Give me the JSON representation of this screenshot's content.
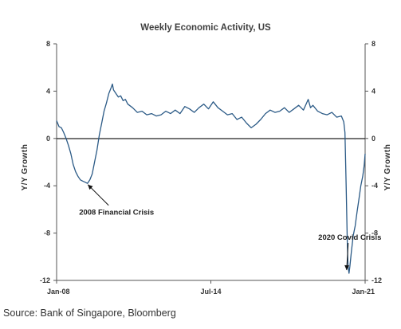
{
  "source_note": "Source: Bank of Singapore, Bloomberg",
  "chart_data": {
    "type": "line",
    "title": "Weekly Economic Activity, US",
    "ylabel_left": "Y/Y Growth",
    "ylabel_right": "Y/Y Growth",
    "x_ticks": [
      "Jan-08",
      "Jul-14",
      "Jan-21"
    ],
    "x_range": [
      2008.0,
      2021.0
    ],
    "ylim": [
      -12,
      8
    ],
    "y_ticks": [
      "8",
      "4",
      "0",
      "-4",
      "-8",
      "-12"
    ],
    "grid": false,
    "zero_line": true,
    "line_color": "#2b5a86",
    "annotations": [
      {
        "text": "2008 Financial Crisis",
        "x": 2009.25,
        "y": -3.7
      },
      {
        "text": "2020 Covid Crisis",
        "x": 2020.22,
        "y": -11.4
      }
    ],
    "series": [
      {
        "values": [
          [
            2008.0,
            1.5
          ],
          [
            2008.1,
            1.0
          ],
          [
            2008.2,
            0.9
          ],
          [
            2008.3,
            0.5
          ],
          [
            2008.4,
            0.0
          ],
          [
            2008.5,
            -0.6
          ],
          [
            2008.6,
            -1.3
          ],
          [
            2008.7,
            -2.2
          ],
          [
            2008.8,
            -2.8
          ],
          [
            2008.9,
            -3.2
          ],
          [
            2009.0,
            -3.5
          ],
          [
            2009.1,
            -3.6
          ],
          [
            2009.2,
            -3.7
          ],
          [
            2009.3,
            -3.8
          ],
          [
            2009.4,
            -3.5
          ],
          [
            2009.5,
            -3.0
          ],
          [
            2009.6,
            -2.0
          ],
          [
            2009.7,
            -1.0
          ],
          [
            2009.8,
            0.3
          ],
          [
            2009.9,
            1.3
          ],
          [
            2010.0,
            2.3
          ],
          [
            2010.1,
            3.0
          ],
          [
            2010.2,
            3.8
          ],
          [
            2010.3,
            4.3
          ],
          [
            2010.35,
            4.6
          ],
          [
            2010.4,
            4.1
          ],
          [
            2010.5,
            3.8
          ],
          [
            2010.6,
            3.5
          ],
          [
            2010.7,
            3.6
          ],
          [
            2010.8,
            3.2
          ],
          [
            2010.9,
            3.3
          ],
          [
            2011.0,
            2.9
          ],
          [
            2011.2,
            2.6
          ],
          [
            2011.4,
            2.2
          ],
          [
            2011.6,
            2.3
          ],
          [
            2011.8,
            2.0
          ],
          [
            2012.0,
            2.1
          ],
          [
            2012.2,
            1.9
          ],
          [
            2012.4,
            2.0
          ],
          [
            2012.6,
            2.3
          ],
          [
            2012.8,
            2.1
          ],
          [
            2013.0,
            2.4
          ],
          [
            2013.2,
            2.1
          ],
          [
            2013.4,
            2.7
          ],
          [
            2013.6,
            2.5
          ],
          [
            2013.8,
            2.2
          ],
          [
            2014.0,
            2.6
          ],
          [
            2014.2,
            2.9
          ],
          [
            2014.4,
            2.5
          ],
          [
            2014.6,
            3.1
          ],
          [
            2014.8,
            2.6
          ],
          [
            2015.0,
            2.3
          ],
          [
            2015.2,
            2.0
          ],
          [
            2015.4,
            2.1
          ],
          [
            2015.6,
            1.6
          ],
          [
            2015.8,
            1.8
          ],
          [
            2016.0,
            1.3
          ],
          [
            2016.2,
            0.9
          ],
          [
            2016.4,
            1.2
          ],
          [
            2016.6,
            1.6
          ],
          [
            2016.8,
            2.1
          ],
          [
            2017.0,
            2.4
          ],
          [
            2017.2,
            2.2
          ],
          [
            2017.4,
            2.3
          ],
          [
            2017.6,
            2.6
          ],
          [
            2017.8,
            2.2
          ],
          [
            2018.0,
            2.5
          ],
          [
            2018.2,
            2.8
          ],
          [
            2018.4,
            2.4
          ],
          [
            2018.6,
            3.3
          ],
          [
            2018.7,
            2.6
          ],
          [
            2018.8,
            2.8
          ],
          [
            2019.0,
            2.3
          ],
          [
            2019.2,
            2.1
          ],
          [
            2019.4,
            2.0
          ],
          [
            2019.6,
            2.2
          ],
          [
            2019.8,
            1.8
          ],
          [
            2020.0,
            1.9
          ],
          [
            2020.1,
            1.4
          ],
          [
            2020.15,
            0.5
          ],
          [
            2020.2,
            -4.0
          ],
          [
            2020.25,
            -9.0
          ],
          [
            2020.28,
            -10.8
          ],
          [
            2020.32,
            -11.4
          ],
          [
            2020.36,
            -10.8
          ],
          [
            2020.42,
            -9.6
          ],
          [
            2020.5,
            -8.2
          ],
          [
            2020.58,
            -7.4
          ],
          [
            2020.66,
            -6.2
          ],
          [
            2020.74,
            -5.1
          ],
          [
            2020.82,
            -4.0
          ],
          [
            2020.9,
            -3.2
          ],
          [
            2020.96,
            -2.3
          ],
          [
            2021.0,
            -1.3
          ]
        ]
      }
    ]
  }
}
